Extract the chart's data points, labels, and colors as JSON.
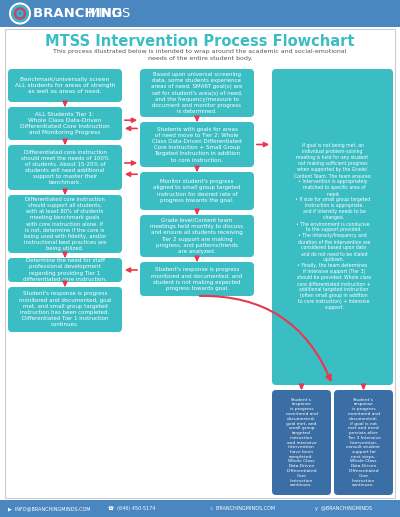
{
  "title": "MTSS Intervention Process Flowchart",
  "subtitle": "This process illustrated below is intended to wrap around the academic and social-emotional\nneeds of the entire student body.",
  "header_bg": "#4A86C0",
  "header_text_bold": "BRANCHING ",
  "header_text_light": "MINDS",
  "body_bg": "#F5F5F5",
  "teal": "#3BBDC4",
  "dark_blue": "#3A6EA5",
  "arrow_color": "#E8384F",
  "text_color": "#FFFFFF",
  "title_color": "#3BBDC4",
  "subtitle_color": "#555555",
  "footer_bg": "#4A86C0",
  "left_boxes": [
    "Benchmark/universally screen\nALL students for areas of strength\nas well as areas of need.",
    "ALL Students Tier 1:\nWhole Class Data-Driven\nDifferentiated Core Instruction\nand Monitoring Progress",
    "Differentiated core instruction\nshould meet the needs of 100%\nof students. About 15-20% of\nstudents will need additional\nsupport to master their\nbenchmark.",
    "Differentiated core instruction\nshould support all students,\nwith at least 80% of students\nmeeting benchmark goals\nwith core instruction alone. If\nis not, determine if the core is\nbeing used with fidelity, and/or\ninstructional best practices are\nbeing utilized.",
    "Determine the need for staff\nprofessional development\nregarding providing Tier 1\ndifferentiated core instruction.",
    "Student's response is progress\nmonitored and documented, goal\nmet, and small group targeted\ninstruction has been completed.\nDifferentiated Tier 1 instruction\ncontinues."
  ],
  "middle_boxes": [
    "Based upon universal screening\ndata, some students experience\nareas of need. SMART goal(s) are\nset for student's area(s) of need,\nand the frequency/measure to\ndocument and monitor progress\nis determined.",
    "Students with goals for areas\nof need move to Tier 2: Whole\nClass Data-Driven Differentiated\nCore Instruction + Small Group\nTargeted Instruction in addition\nto core instruction.",
    "Monitor student's progress\naligned to small group targeted\ninstruction for desired rate of\nprogress towards the goal.",
    "Grade level/Content team\nmeetings held monthly to discuss\nand ensure all students receiving\nTier 2 support are making\nprogress, and patterns/trends\nare analyzed.",
    "Student's response is progress\nmonitored and documented, and\nstudent is not making expected\nprogress towards goal."
  ],
  "right_box_top": "If goal is not being met, an\nindividual problem-solving\nmeeting is held for any student\nnot making sufficient progress\nwhen supported by the Grade/\nContent Team. The team ensures:\n• Intervention is appropriately\n  matched to specific area of\n  need.\n• If size for small group targeted\n  instruction is appropriate,\n  and if intensity needs to be\n  changed.\n• The environment is conducive\n  to the support provided.\n• The intensity/frequency and\n  duration of the intervention are\n  considered based upon data\n  and do not need to be dialed\n  up/down.\n• Finally, the team determines\n  if intensive support (Tier 3)\n  should be provided: Whole class\n  core differentiated instruction +\n  additional targeted instruction\n  (often small group in addition\n  to core instruction) + intensive\n  support.",
  "right_box_bottom_left": "Student's\nresponse\nis progress\nmonitored and\ndocumented,\ngoal met, and\nsmall group\ntargeted\ninstruction\nand intensive\nintervention\nhave been\ncompleted.\nWhole Class\nData-Driven\nDifferentiated\nCore\nInstruction\ncontinues.",
  "right_box_bottom_right": "Student's\nresponse\nis progress\nmonitored and\ndocumented;\nif goal is not\nmet and need\npersists after\nTier 3 Intensive\nIntervention,\nconsult student\nsupport for\nnext steps.\nWhole Class\nData-Driven\nDifferentiated\nCore\nInstruction\ncontinues.",
  "footer_items": [
    {
      "icon": "▶",
      "text": "INFO@BRANCHINGMINDS.COM"
    },
    {
      "icon": "☎",
      "text": "(646) 450-5174"
    },
    {
      "icon": "☝",
      "text": "BRANCHINGMINDS.COM"
    },
    {
      "icon": "🐦",
      "text": "@BRANCHINGMINDS"
    }
  ]
}
